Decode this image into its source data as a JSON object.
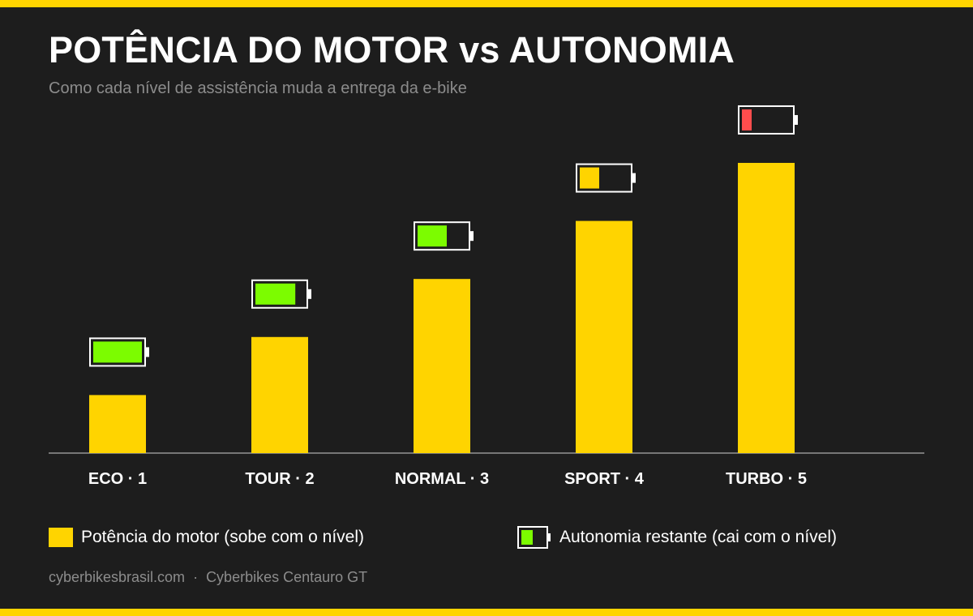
{
  "title": "POTÊNCIA DO MOTOR vs AUTONOMIA",
  "subtitle": "Como cada nível de assistência muda a entrega da e-bike",
  "colors": {
    "background": "#1d1d1d",
    "accent_yellow": "#ffd400",
    "battery_green": "#7cfc00",
    "battery_yellow": "#ffd400",
    "battery_red": "#ff4d4d",
    "axis": "#777777",
    "battery_outline": "#ffffff"
  },
  "chart_data": {
    "type": "bar",
    "categories": [
      "ECO · 1",
      "TOUR · 2",
      "NORMAL · 3",
      "SPORT · 4",
      "TURBO · 5"
    ],
    "series": [
      {
        "name": "Potência do motor (sobe com o nível)",
        "values": [
          1,
          2,
          3,
          4,
          5
        ]
      },
      {
        "name": "Autonomia restante (cai com o nível)",
        "values": [
          1.0,
          0.82,
          0.6,
          0.4,
          0.2
        ],
        "unit": "fraction of battery",
        "colors": [
          "#7cfc00",
          "#7cfc00",
          "#7cfc00",
          "#ffd400",
          "#ff4d4d"
        ]
      }
    ],
    "xlabel": "",
    "ylabel": "",
    "ylim": [
      0,
      5.6
    ],
    "grid": false,
    "legend_position": "bottom"
  },
  "legend": {
    "motor_label": "Potência do motor (sobe com o nível)",
    "battery_label": "Autonomia restante (cai com o nível)"
  },
  "footer": {
    "site": "cyberbikesbrasil.com",
    "separator": "·",
    "product": "Cyberbikes Centauro GT"
  }
}
